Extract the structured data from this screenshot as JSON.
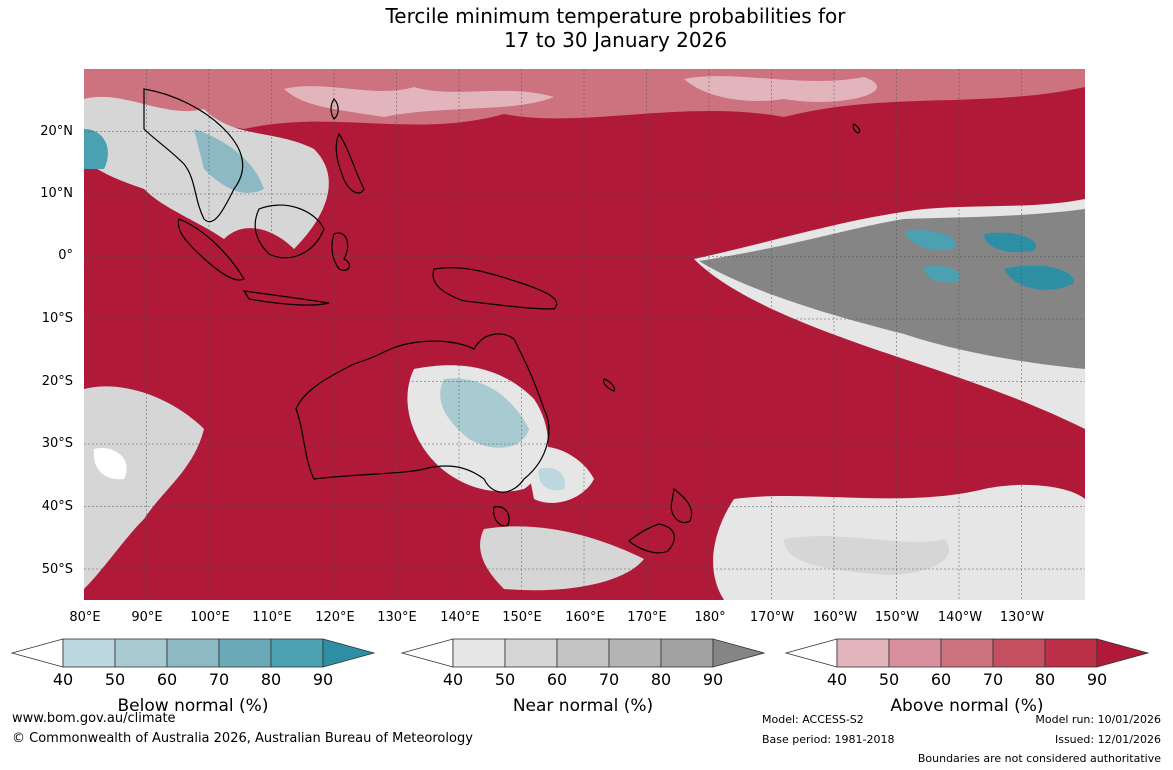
{
  "title": {
    "line1": "Tercile minimum temperature probabilities for",
    "line2": "17 to 30 January 2026"
  },
  "map": {
    "lon_range": [
      80,
      240
    ],
    "lat_range": [
      -55,
      30
    ],
    "lat_labels": [
      "20°N",
      "10°N",
      "0°",
      "10°S",
      "20°S",
      "30°S",
      "40°S",
      "50°S"
    ],
    "lat_values": [
      20,
      10,
      0,
      -10,
      -20,
      -30,
      -40,
      -50
    ],
    "lon_labels": [
      "80°E",
      "90°E",
      "100°E",
      "110°E",
      "120°E",
      "130°E",
      "140°E",
      "150°E",
      "160°E",
      "170°E",
      "180°",
      "170°W",
      "160°W",
      "150°W",
      "140°W",
      "130°W"
    ],
    "lon_values": [
      80,
      90,
      100,
      110,
      120,
      130,
      140,
      150,
      160,
      170,
      180,
      190,
      200,
      210,
      220,
      230
    ]
  },
  "legends": [
    {
      "label": "Below normal (%)",
      "ticks": [
        "40",
        "50",
        "60",
        "70",
        "80",
        "90"
      ],
      "colors": [
        "#ffffff",
        "#bcd7de",
        "#a8cad1",
        "#8db9c5",
        "#6aaab8",
        "#4ba0b1",
        "#2e8fa4"
      ]
    },
    {
      "label": "Near normal (%)",
      "ticks": [
        "40",
        "50",
        "60",
        "70",
        "80",
        "90"
      ],
      "colors": [
        "#ffffff",
        "#e6e6e6",
        "#d6d6d6",
        "#c4c4c4",
        "#b4b4b4",
        "#a2a2a2",
        "#858585"
      ]
    },
    {
      "label": "Above normal (%)",
      "ticks": [
        "40",
        "50",
        "60",
        "70",
        "80",
        "90"
      ],
      "colors": [
        "#ffffff",
        "#e2b5bd",
        "#d8919c",
        "#cd727f",
        "#c4505f",
        "#bc3048",
        "#b01a38"
      ]
    }
  ],
  "footer": {
    "website": "www.bom.gov.au/climate",
    "copyright": "© Commonwealth of Australia 2026, Australian Bureau of Meteorology",
    "model": "Model: ACCESS-S2",
    "base_period": "Base period: 1981-2018",
    "model_run": "Model run: 10/01/2026",
    "issued": "Issued: 12/01/2026",
    "boundaries": "Boundaries are not considered authoritative"
  }
}
